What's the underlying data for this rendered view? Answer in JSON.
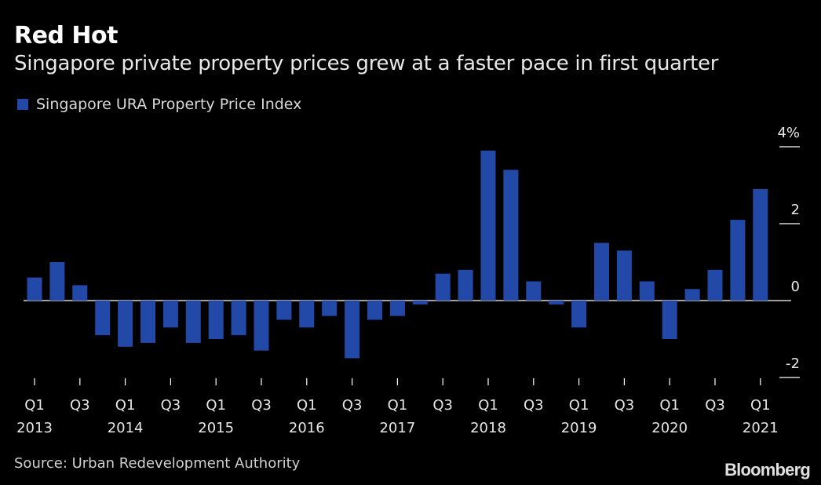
{
  "header": {
    "title": "Red Hot",
    "subtitle": "Singapore private property prices grew at a faster pace in first quarter"
  },
  "legend": {
    "label": "Singapore URA Property Price Index"
  },
  "footer": {
    "source": "Source: Urban Redevelopment Authority",
    "brand": "Bloomberg"
  },
  "colors": {
    "bar": "#2349a8",
    "background": "#000000",
    "zero_line": "#ffffff"
  },
  "chart_data": {
    "type": "bar",
    "title": "Red Hot",
    "ylabel": "%",
    "ylim": [
      -2,
      4
    ],
    "yticks": [
      {
        "value": 4,
        "label": "4%"
      },
      {
        "value": 2,
        "label": "2"
      },
      {
        "value": 0,
        "label": "0"
      },
      {
        "value": -2,
        "label": "-2"
      }
    ],
    "categories": [
      "Q1 2013",
      "Q2 2013",
      "Q3 2013",
      "Q4 2013",
      "Q1 2014",
      "Q2 2014",
      "Q3 2014",
      "Q4 2014",
      "Q1 2015",
      "Q2 2015",
      "Q3 2015",
      "Q4 2015",
      "Q1 2016",
      "Q2 2016",
      "Q3 2016",
      "Q4 2016",
      "Q1 2017",
      "Q2 2017",
      "Q3 2017",
      "Q4 2017",
      "Q1 2018",
      "Q2 2018",
      "Q3 2018",
      "Q4 2018",
      "Q1 2019",
      "Q2 2019",
      "Q3 2019",
      "Q4 2019",
      "Q1 2020",
      "Q2 2020",
      "Q3 2020",
      "Q4 2020",
      "Q1 2021"
    ],
    "series": [
      {
        "name": "Singapore URA Property Price Index",
        "values": [
          0.6,
          1.0,
          0.4,
          -0.9,
          -1.2,
          -1.1,
          -0.7,
          -1.1,
          -1.0,
          -0.9,
          -1.3,
          -0.5,
          -0.7,
          -0.4,
          -1.5,
          -0.5,
          -0.4,
          -0.1,
          0.7,
          0.8,
          3.9,
          3.4,
          0.5,
          -0.1,
          -0.7,
          1.5,
          1.3,
          0.5,
          -1.0,
          0.3,
          0.8,
          2.1,
          2.9
        ]
      }
    ],
    "xtick_labels": [
      {
        "index": 0,
        "quarter": "Q1",
        "year": "2013"
      },
      {
        "index": 2,
        "quarter": "Q3",
        "year": ""
      },
      {
        "index": 4,
        "quarter": "Q1",
        "year": "2014"
      },
      {
        "index": 6,
        "quarter": "Q3",
        "year": ""
      },
      {
        "index": 8,
        "quarter": "Q1",
        "year": "2015"
      },
      {
        "index": 10,
        "quarter": "Q3",
        "year": ""
      },
      {
        "index": 12,
        "quarter": "Q1",
        "year": "2016"
      },
      {
        "index": 14,
        "quarter": "Q3",
        "year": ""
      },
      {
        "index": 16,
        "quarter": "Q1",
        "year": "2017"
      },
      {
        "index": 18,
        "quarter": "Q3",
        "year": ""
      },
      {
        "index": 20,
        "quarter": "Q1",
        "year": "2018"
      },
      {
        "index": 22,
        "quarter": "Q3",
        "year": ""
      },
      {
        "index": 24,
        "quarter": "Q1",
        "year": "2019"
      },
      {
        "index": 26,
        "quarter": "Q3",
        "year": ""
      },
      {
        "index": 28,
        "quarter": "Q1",
        "year": "2020"
      },
      {
        "index": 30,
        "quarter": "Q3",
        "year": ""
      },
      {
        "index": 32,
        "quarter": "Q1",
        "year": "2021"
      }
    ]
  }
}
